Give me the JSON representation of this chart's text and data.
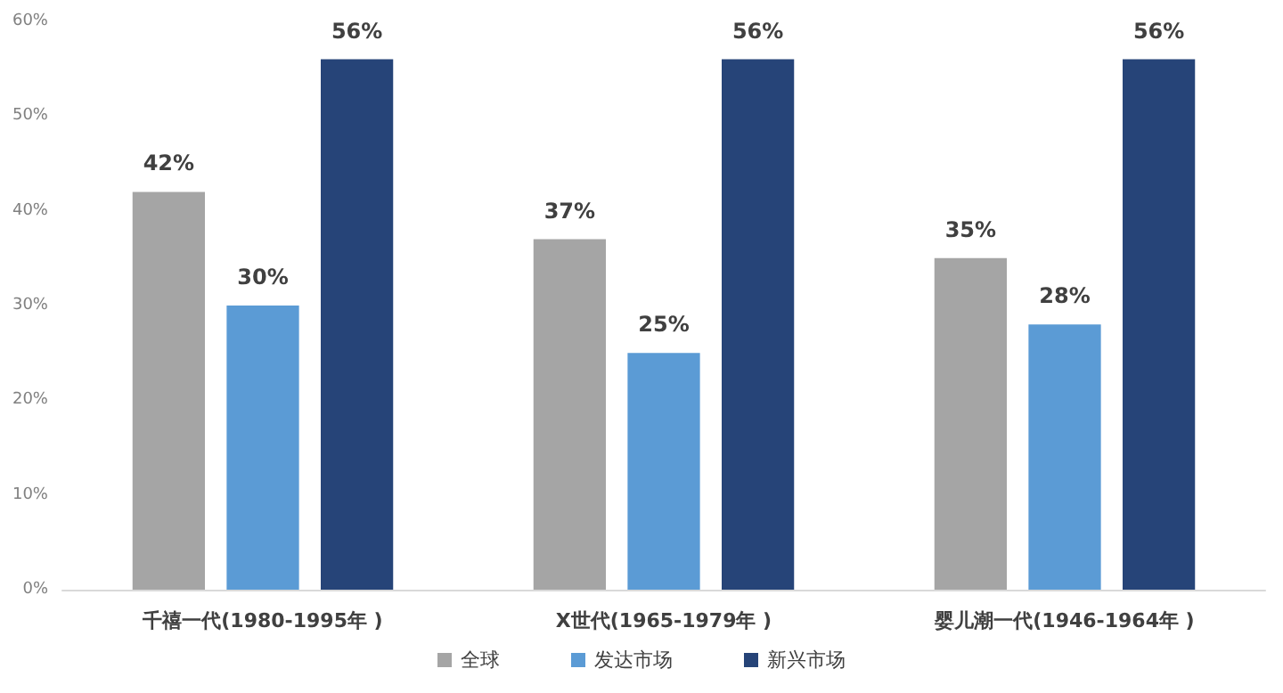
{
  "chart_data": {
    "type": "bar",
    "categories": [
      "千禧一代(1980-1995年 )",
      "X世代(1965-1979年 )",
      "婴儿潮一代(1946-1964年 )"
    ],
    "series": [
      {
        "name": "全球",
        "color": "#a5a5a5",
        "values": [
          42,
          37,
          35
        ],
        "value_labels": [
          "42%",
          "37%",
          "35%"
        ]
      },
      {
        "name": "发达市场",
        "color": "#5b9bd5",
        "values": [
          30,
          25,
          28
        ],
        "value_labels": [
          "30%",
          "25%",
          "28%"
        ]
      },
      {
        "name": "新兴市场",
        "color": "#264478",
        "values": [
          56,
          56,
          56
        ],
        "value_labels": [
          "56%",
          "56%",
          "56%"
        ]
      }
    ],
    "ylim": [
      0,
      60
    ],
    "yticks": [
      {
        "value": 0,
        "label": "0%"
      },
      {
        "value": 10,
        "label": "10%"
      },
      {
        "value": 20,
        "label": "20%"
      },
      {
        "value": 30,
        "label": "30%"
      },
      {
        "value": 40,
        "label": "40%"
      },
      {
        "value": 50,
        "label": "50%"
      },
      {
        "value": 60,
        "label": "60%"
      }
    ],
    "grid": false,
    "legend": "bottom"
  }
}
